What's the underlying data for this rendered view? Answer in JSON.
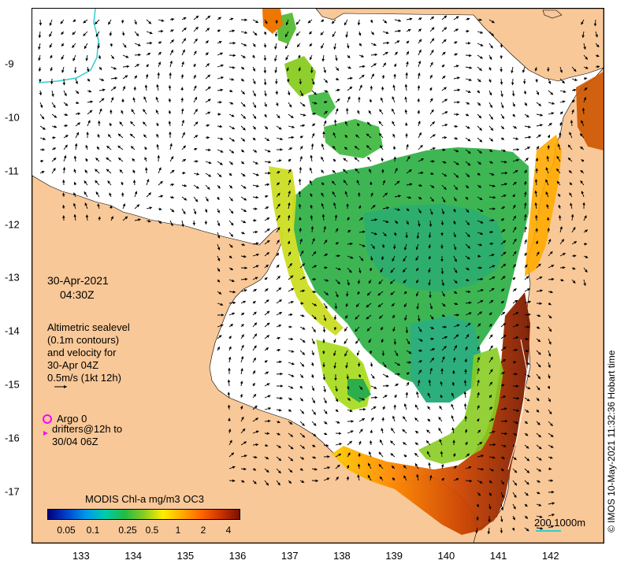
{
  "map": {
    "x_ticks": [
      "133",
      "134",
      "135",
      "136",
      "137",
      "138",
      "139",
      "140",
      "141",
      "142"
    ],
    "y_ticks": [
      "-9",
      "-10",
      "-11",
      "-12",
      "-13",
      "-14",
      "-15",
      "-16",
      "-17"
    ],
    "x_range": [
      132.05,
      143.0
    ],
    "y_range": [
      -17.95,
      -7.95
    ],
    "land_color": "#f9c898",
    "ocean_color": "#ffffff",
    "current_color": "#33cccc"
  },
  "timestamp": {
    "date": "30-Apr-2021",
    "time": "04:30Z"
  },
  "legend": {
    "line1": "Altimetric sealevel",
    "line2": "(0.1m contours)",
    "line3": "and velocity for",
    "line4": "30-Apr 04Z",
    "line5": "0.5m/s (1kt 12h)"
  },
  "argo": {
    "label": "Argo 0",
    "color": "#ff00ff"
  },
  "drifters": {
    "line1": "drifters@12h to",
    "line2": "30/04 06Z",
    "color": "#ff00ff"
  },
  "colorbar": {
    "title": "MODIS Chl-a mg/m3 OC3",
    "ticks": [
      "0.05",
      "0.1",
      "0.25",
      "0.5",
      "1",
      "2",
      "4"
    ],
    "stops": [
      "#000080",
      "#0044cc",
      "#0099ee",
      "#00ccaa",
      "#22bb44",
      "#88cc22",
      "#ffee00",
      "#ffaa00",
      "#ff6600",
      "#cc3300",
      "#771100"
    ]
  },
  "scale": {
    "label": "200 1000m",
    "color": "#33cccc"
  },
  "credit": "© IMOS 10-May-2021 11:32:36 Hobart time"
}
